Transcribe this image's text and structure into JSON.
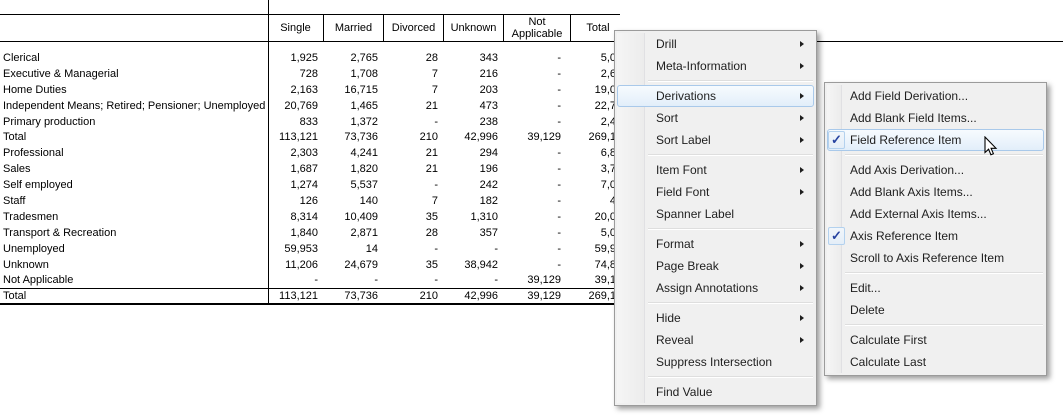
{
  "table": {
    "columns": [
      "Single",
      "Married",
      "Divorced",
      "Unknown",
      "Not Applicable",
      "Total"
    ],
    "rows": [
      {
        "label": "Clerical",
        "values": [
          "1,925",
          "2,765",
          "28",
          "343",
          "-",
          "5,0"
        ]
      },
      {
        "label": "Executive & Managerial",
        "values": [
          "728",
          "1,708",
          "7",
          "216",
          "-",
          "2,6"
        ]
      },
      {
        "label": "Home Duties",
        "values": [
          "2,163",
          "16,715",
          "7",
          "203",
          "-",
          "19,0"
        ]
      },
      {
        "label": "Independent Means; Retired; Pensioner; Unemployed",
        "values": [
          "20,769",
          "1,465",
          "21",
          "473",
          "-",
          "22,7"
        ]
      },
      {
        "label": "Primary production",
        "values": [
          "833",
          "1,372",
          "-",
          "238",
          "-",
          "2,4"
        ]
      },
      {
        "label": "Total",
        "values": [
          "113,121",
          "73,736",
          "210",
          "42,996",
          "39,129",
          "269,1"
        ]
      },
      {
        "label": "Professional",
        "values": [
          "2,303",
          "4,241",
          "21",
          "294",
          "-",
          "6,8"
        ]
      },
      {
        "label": "Sales",
        "values": [
          "1,687",
          "1,820",
          "21",
          "196",
          "-",
          "3,7"
        ]
      },
      {
        "label": "Self employed",
        "values": [
          "1,274",
          "5,537",
          "-",
          "242",
          "-",
          "7,0"
        ]
      },
      {
        "label": "Staff",
        "values": [
          "126",
          "140",
          "7",
          "182",
          "-",
          "4"
        ]
      },
      {
        "label": "Tradesmen",
        "values": [
          "8,314",
          "10,409",
          "35",
          "1,310",
          "-",
          "20,0"
        ]
      },
      {
        "label": "Transport & Recreation",
        "values": [
          "1,840",
          "2,871",
          "28",
          "357",
          "-",
          "5,0"
        ]
      },
      {
        "label": "Unemployed",
        "values": [
          "59,953",
          "14",
          "-",
          "-",
          "-",
          "59,9"
        ]
      },
      {
        "label": "Unknown",
        "values": [
          "11,206",
          "24,679",
          "35",
          "38,942",
          "-",
          "74,8"
        ]
      },
      {
        "label": "Not Applicable",
        "values": [
          "-",
          "-",
          "-",
          "-",
          "39,129",
          "39,1"
        ]
      },
      {
        "label": "Total",
        "values": [
          "113,121",
          "73,736",
          "210",
          "42,996",
          "39,129",
          "269,1"
        ]
      }
    ]
  },
  "context_menu": {
    "items": [
      {
        "label": "Drill",
        "has_submenu": true
      },
      {
        "label": "Meta-Information",
        "has_submenu": true
      },
      {
        "separator": true
      },
      {
        "label": "Derivations",
        "has_submenu": true,
        "highlighted": true
      },
      {
        "label": "Sort",
        "has_submenu": true
      },
      {
        "label": "Sort Label",
        "has_submenu": true
      },
      {
        "separator": true
      },
      {
        "label": "Item Font",
        "has_submenu": true
      },
      {
        "label": "Field Font",
        "has_submenu": true
      },
      {
        "label": "Spanner Label"
      },
      {
        "separator": true
      },
      {
        "label": "Format",
        "has_submenu": true
      },
      {
        "label": "Page Break",
        "has_submenu": true
      },
      {
        "label": "Assign Annotations",
        "has_submenu": true
      },
      {
        "separator": true
      },
      {
        "label": "Hide",
        "has_submenu": true
      },
      {
        "label": "Reveal",
        "has_submenu": true
      },
      {
        "label": "Suppress Intersection"
      },
      {
        "separator": true
      },
      {
        "label": "Find Value"
      }
    ]
  },
  "derivations_submenu": {
    "items": [
      {
        "label": "Add Field Derivation..."
      },
      {
        "label": "Add Blank Field Items..."
      },
      {
        "label": "Field Reference Item",
        "checked": true,
        "highlighted": true
      },
      {
        "separator": true
      },
      {
        "label": "Add Axis Derivation..."
      },
      {
        "label": "Add Blank Axis Items..."
      },
      {
        "label": "Add External Axis Items..."
      },
      {
        "label": "Axis Reference Item",
        "checked": true
      },
      {
        "label": "Scroll to Axis Reference Item"
      },
      {
        "separator": true
      },
      {
        "label": "Edit..."
      },
      {
        "label": "Delete"
      },
      {
        "separator": true
      },
      {
        "label": "Calculate First"
      },
      {
        "label": "Calculate Last"
      }
    ]
  },
  "icons": {
    "checkmark": "✓"
  },
  "colors": {
    "menu_bg": "#f0f0f0",
    "menu_border": "#9b9b9b",
    "highlight_border": "#a9c9ea",
    "highlight_fill_top": "#f7fbfe",
    "highlight_fill_bottom": "#e2eefa",
    "checkmark": "#2743a0",
    "table_border": "#000000",
    "text": "#000000"
  }
}
